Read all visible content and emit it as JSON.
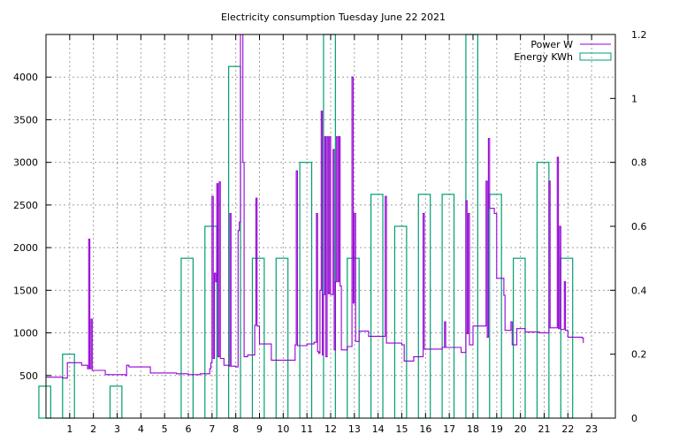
{
  "chart_data": {
    "type": "line",
    "title": "Electricity consumption Tuesday June 22 2021",
    "xlabel": "",
    "ylabel": "",
    "xlim": [
      0,
      24
    ],
    "ylim": [
      0,
      4500
    ],
    "y2lim": [
      0,
      1.2
    ],
    "x_ticks": [
      1,
      2,
      3,
      4,
      5,
      6,
      7,
      8,
      9,
      10,
      11,
      12,
      13,
      14,
      15,
      16,
      17,
      18,
      19,
      20,
      21,
      22,
      23
    ],
    "y_ticks": [
      500,
      1000,
      1500,
      2000,
      2500,
      3000,
      3500,
      4000
    ],
    "y2_ticks": [
      0,
      0.2,
      0.4,
      0.6,
      0.8,
      1,
      1.2
    ],
    "grid": true,
    "legend_position": "top-right",
    "colors": {
      "power": "#9400d3",
      "energy": "#009e73"
    },
    "series": [
      {
        "name": "Power W",
        "axis": "left",
        "style": "step-line",
        "points": [
          [
            0.0,
            480
          ],
          [
            0.7,
            470
          ],
          [
            0.9,
            650
          ],
          [
            1.5,
            620
          ],
          [
            1.75,
            580
          ],
          [
            1.8,
            2100
          ],
          [
            1.85,
            580
          ],
          [
            1.9,
            1160
          ],
          [
            1.95,
            560
          ],
          [
            2.5,
            510
          ],
          [
            3.35,
            500
          ],
          [
            3.4,
            620
          ],
          [
            3.5,
            600
          ],
          [
            4.4,
            530
          ],
          [
            5.5,
            520
          ],
          [
            6.0,
            510
          ],
          [
            6.5,
            520
          ],
          [
            6.9,
            580
          ],
          [
            6.95,
            650
          ],
          [
            7.0,
            2600
          ],
          [
            7.05,
            700
          ],
          [
            7.1,
            1700
          ],
          [
            7.15,
            1600
          ],
          [
            7.2,
            2750
          ],
          [
            7.25,
            720
          ],
          [
            7.3,
            2770
          ],
          [
            7.35,
            700
          ],
          [
            7.5,
            620
          ],
          [
            7.7,
            610
          ],
          [
            7.75,
            2400
          ],
          [
            7.8,
            610
          ],
          [
            8.0,
            600
          ],
          [
            8.1,
            2200
          ],
          [
            8.15,
            2300
          ],
          [
            8.2,
            4500
          ],
          [
            8.3,
            3000
          ],
          [
            8.35,
            720
          ],
          [
            8.5,
            740
          ],
          [
            8.8,
            1090
          ],
          [
            8.85,
            2580
          ],
          [
            8.9,
            1080
          ],
          [
            9.0,
            870
          ],
          [
            9.5,
            680
          ],
          [
            10.2,
            680
          ],
          [
            10.5,
            860
          ],
          [
            10.55,
            2900
          ],
          [
            10.6,
            850
          ],
          [
            10.85,
            850
          ],
          [
            11.0,
            870
          ],
          [
            11.3,
            890
          ],
          [
            11.4,
            2400
          ],
          [
            11.45,
            780
          ],
          [
            11.5,
            760
          ],
          [
            11.55,
            1500
          ],
          [
            11.6,
            3600
          ],
          [
            11.65,
            740
          ],
          [
            11.7,
            1450
          ],
          [
            11.75,
            3300
          ],
          [
            11.8,
            720
          ],
          [
            11.85,
            3300
          ],
          [
            11.9,
            1460
          ],
          [
            11.95,
            3300
          ],
          [
            12.0,
            1450
          ],
          [
            12.1,
            3150
          ],
          [
            12.15,
            800
          ],
          [
            12.2,
            1600
          ],
          [
            12.25,
            3300
          ],
          [
            12.3,
            1600
          ],
          [
            12.35,
            3300
          ],
          [
            12.4,
            1550
          ],
          [
            12.45,
            800
          ],
          [
            12.7,
            840
          ],
          [
            12.9,
            4000
          ],
          [
            12.95,
            1350
          ],
          [
            13.0,
            2400
          ],
          [
            13.05,
            900
          ],
          [
            13.2,
            1020
          ],
          [
            13.6,
            960
          ],
          [
            14.3,
            2600
          ],
          [
            14.35,
            880
          ],
          [
            14.9,
            880
          ],
          [
            15.0,
            860
          ],
          [
            15.1,
            670
          ],
          [
            15.5,
            720
          ],
          [
            15.9,
            2400
          ],
          [
            15.95,
            810
          ],
          [
            16.7,
            830
          ],
          [
            16.8,
            1130
          ],
          [
            16.85,
            830
          ],
          [
            17.5,
            770
          ],
          [
            17.7,
            2550
          ],
          [
            17.75,
            990
          ],
          [
            17.8,
            2400
          ],
          [
            17.85,
            860
          ],
          [
            18.0,
            1080
          ],
          [
            18.5,
            1080
          ],
          [
            18.55,
            2780
          ],
          [
            18.6,
            950
          ],
          [
            18.65,
            3280
          ],
          [
            18.7,
            2460
          ],
          [
            18.9,
            2400
          ],
          [
            19.0,
            1640
          ],
          [
            19.3,
            1440
          ],
          [
            19.35,
            1030
          ],
          [
            19.6,
            1130
          ],
          [
            19.65,
            860
          ],
          [
            19.85,
            1050
          ],
          [
            20.2,
            1010
          ],
          [
            20.7,
            1010
          ],
          [
            20.8,
            1000
          ],
          [
            21.2,
            2780
          ],
          [
            21.25,
            1060
          ],
          [
            21.55,
            3060
          ],
          [
            21.6,
            1050
          ],
          [
            21.65,
            2250
          ],
          [
            21.7,
            1040
          ],
          [
            21.85,
            1600
          ],
          [
            21.9,
            1030
          ],
          [
            22.0,
            950
          ],
          [
            22.6,
            940
          ],
          [
            22.65,
            880
          ]
        ]
      },
      {
        "name": "Energy KWh",
        "axis": "right",
        "style": "impulse-box",
        "boxes": [
          [
            0.0,
            0.1
          ],
          [
            1.0,
            0.2
          ],
          [
            3.0,
            0.1
          ],
          [
            6.0,
            0.5
          ],
          [
            7.0,
            0.6
          ],
          [
            8.0,
            1.1
          ],
          [
            9.0,
            0.5
          ],
          [
            10.0,
            0.5
          ],
          [
            11.0,
            0.8
          ],
          [
            12.0,
            1.2
          ],
          [
            13.0,
            0.5
          ],
          [
            14.0,
            0.7
          ],
          [
            15.0,
            0.6
          ],
          [
            16.0,
            0.7
          ],
          [
            17.0,
            0.7
          ],
          [
            18.0,
            1.2
          ],
          [
            19.0,
            0.7
          ],
          [
            20.0,
            0.5
          ],
          [
            21.0,
            0.8
          ],
          [
            22.0,
            0.5
          ]
        ]
      }
    ]
  }
}
